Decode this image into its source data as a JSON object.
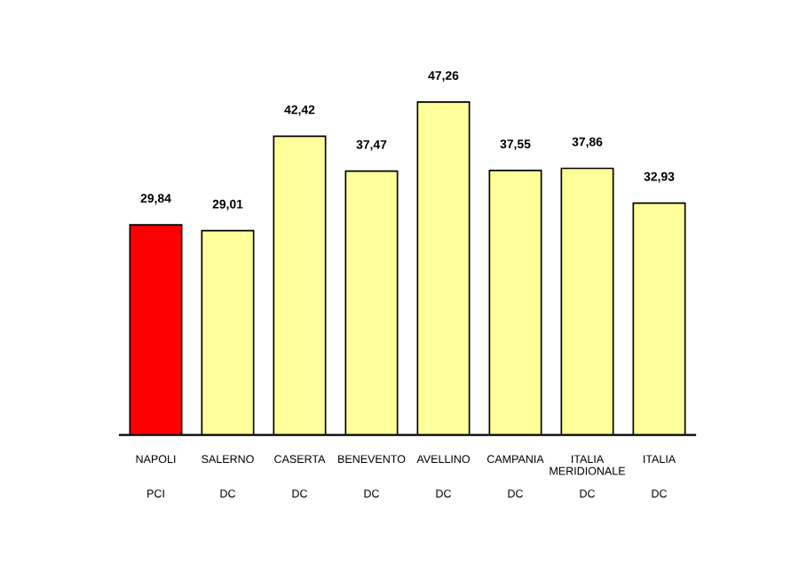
{
  "chart_data": {
    "type": "bar",
    "categories": [
      "NAPOLI",
      "SALERNO",
      "CASERTA",
      "BENEVENTO",
      "AVELLINO",
      "CAMPANIA",
      "ITALIA\nMERIDIONALE",
      "ITALIA"
    ],
    "annotations": [
      "PCI",
      "DC",
      "DC",
      "DC",
      "DC",
      "DC",
      "DC",
      "DC"
    ],
    "values": [
      29.84,
      29.01,
      42.42,
      37.47,
      47.26,
      37.55,
      37.86,
      32.93
    ],
    "value_labels": [
      "29,84",
      "29,01",
      "42,42",
      "37,47",
      "47,26",
      "37,55",
      "37,86",
      "32,93"
    ],
    "colors": [
      "#ff0000",
      "#ffff99",
      "#ffff99",
      "#ffff99",
      "#ffff99",
      "#ffff99",
      "#ffff99",
      "#ffff99"
    ],
    "grid": false,
    "legend": false
  }
}
